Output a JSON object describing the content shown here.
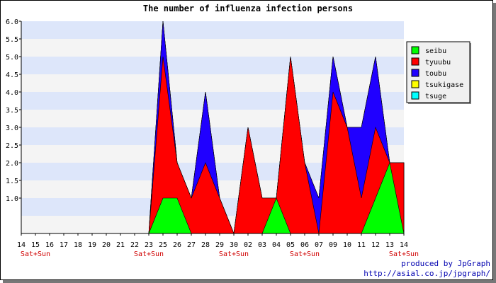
{
  "chart_data": {
    "type": "area",
    "title": "The number of influenza infection persons",
    "categories": [
      "14",
      "15",
      "16",
      "17",
      "18",
      "19",
      "20",
      "21",
      "22",
      "23",
      "25",
      "26",
      "27",
      "28",
      "29",
      "30",
      "02",
      "03",
      "04",
      "05",
      "06",
      "07",
      "09",
      "10",
      "11",
      "12",
      "13",
      "14"
    ],
    "weekend_labels": [
      {
        "index": 1,
        "text": "Sat+Sun"
      },
      {
        "index": 9,
        "text": "Sat+Sun"
      },
      {
        "index": 15,
        "text": "Sat+Sun"
      },
      {
        "index": 20,
        "text": "Sat+Sun"
      },
      {
        "index": 27,
        "text": "Sat+Sun"
      }
    ],
    "ylim": [
      0,
      6
    ],
    "yticks": [
      "1.0",
      "1.5",
      "2.0",
      "2.5",
      "3.0",
      "3.5",
      "4.0",
      "4.5",
      "5.0",
      "5.5",
      "6.0"
    ],
    "legend_position": "top-right",
    "series": [
      {
        "name": "seibu",
        "color": "#00ff00",
        "values": [
          0,
          0,
          0,
          0,
          0,
          0,
          0,
          0,
          0,
          0,
          1,
          1,
          0,
          0,
          0,
          0,
          0,
          0,
          1,
          0,
          0,
          0,
          0,
          0,
          0,
          1,
          2,
          0
        ]
      },
      {
        "name": "tyuubu",
        "color": "#ff0000",
        "values": [
          0,
          0,
          0,
          0,
          0,
          0,
          0,
          0,
          0,
          0,
          4,
          1,
          1,
          2,
          1,
          0,
          3,
          1,
          0,
          5,
          2,
          0,
          4,
          3,
          1,
          2,
          0,
          2
        ]
      },
      {
        "name": "toubu",
        "color": "#2000ff",
        "values": [
          0,
          0,
          0,
          0,
          0,
          0,
          0,
          0,
          0,
          0,
          1,
          0,
          0,
          2,
          0,
          0,
          0,
          0,
          0,
          0,
          0,
          1,
          1,
          0,
          2,
          2,
          0,
          0
        ]
      },
      {
        "name": "tsukigase",
        "color": "#ffff00",
        "values": [
          0,
          0,
          0,
          0,
          0,
          0,
          0,
          0,
          0,
          0,
          0,
          0,
          0,
          0,
          0,
          0,
          0,
          0,
          0,
          0,
          0,
          0,
          0,
          0,
          0,
          0,
          0,
          0
        ]
      },
      {
        "name": "tsuge",
        "color": "#00ffff",
        "values": [
          0,
          0,
          0,
          0,
          0,
          0,
          0,
          0,
          0,
          0,
          0,
          0,
          0,
          0,
          0,
          0,
          0,
          0,
          0,
          0,
          0,
          0,
          0,
          0,
          0,
          0,
          0,
          0
        ]
      }
    ]
  },
  "footer": {
    "credit_line1": "produced by JpGraph",
    "credit_line2": "http://asial.co.jp/jpgraph/"
  }
}
